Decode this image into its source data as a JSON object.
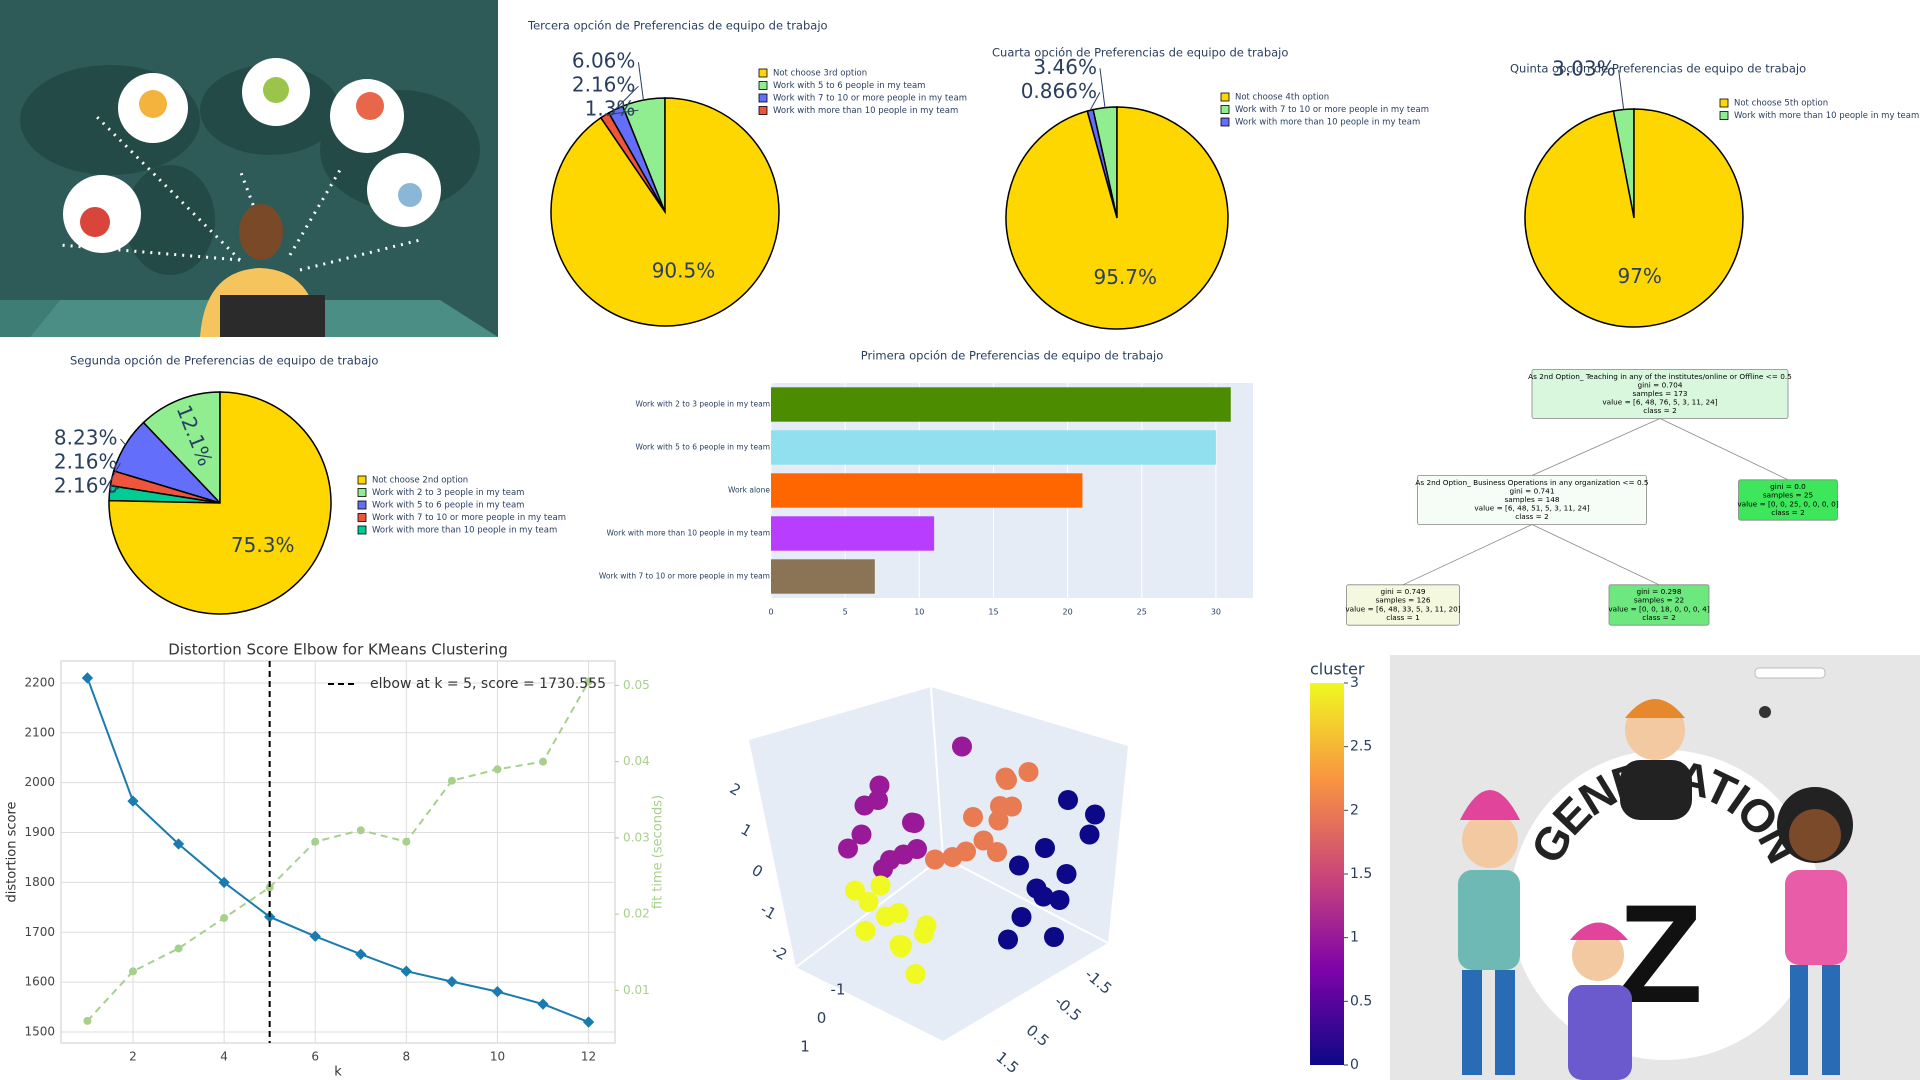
{
  "chart_data": [
    {
      "type": "pie",
      "title": "Tercera opción de Preferencias de equipo de trabajo",
      "labels": [
        "Not choose 3rd option",
        "Work with 5 to 6 people in my team",
        "Work with 7 to 10 or more people in my team",
        "Work with more than 10 people in my team"
      ],
      "values": [
        90.5,
        6.06,
        2.16,
        1.3
      ],
      "value_labels": [
        "90.5%",
        "6.06%",
        "2.16%",
        "1.3%"
      ],
      "colors": [
        "#FFD700",
        "#90EE90",
        "#636EFA",
        "#EF553B"
      ]
    },
    {
      "type": "pie",
      "title": "Cuarta opción de Preferencias de equipo de trabajo",
      "labels": [
        "Not choose 4th option",
        "Work with 7 to 10 or more people in my team",
        "Work with more than 10 people in my team"
      ],
      "values": [
        95.7,
        3.46,
        0.866
      ],
      "value_labels": [
        "95.7%",
        "3.46%",
        "0.866%"
      ],
      "colors": [
        "#FFD700",
        "#90EE90",
        "#636EFA"
      ]
    },
    {
      "type": "pie",
      "title": "Quinta opción de Preferencias de equipo de trabajo",
      "labels": [
        "Not choose 5th option",
        "Work with more than 10 people in my team"
      ],
      "values": [
        97,
        3.03
      ],
      "value_labels": [
        "97%",
        "3.03%"
      ],
      "colors": [
        "#FFD700",
        "#90EE90"
      ]
    },
    {
      "type": "pie",
      "title": "Segunda opción de Preferencias de equipo de trabajo",
      "labels": [
        "Not choose 2nd option",
        "Work with 2 to 3 people in my team",
        "Work with 5 to 6 people in my team",
        "Work with 7 to 10 or more people in my team",
        "Work with more than 10 people in my team"
      ],
      "values": [
        75.3,
        12.1,
        8.23,
        2.16,
        2.16
      ],
      "value_labels": [
        "75.3%",
        "12.1%",
        "8.23%",
        "2.16%",
        "2.16%"
      ],
      "colors": [
        "#FFD700",
        "#90EE90",
        "#636EFA",
        "#EF553B",
        "#00CC96"
      ]
    },
    {
      "type": "bar",
      "orientation": "h",
      "title": "Primera opción de Preferencias de equipo de trabajo",
      "categories": [
        "Work with 2 to 3 people in my team",
        "Work with 5 to 6 people in my team",
        "Work alone",
        "Work with more than 10 people in my team",
        "Work with 7 to 10 or more people in my team"
      ],
      "values": [
        31,
        30,
        21,
        11,
        7
      ],
      "colors": [
        "#4C8C00",
        "#90E0EF",
        "#FF6600",
        "#B83DFF",
        "#8B7355"
      ],
      "xlim": [
        0,
        32.5
      ],
      "xticks": [
        0,
        5,
        10,
        15,
        20,
        25,
        30
      ],
      "grid": true
    },
    {
      "type": "line",
      "title": "Distortion Score Elbow for KMeans Clustering",
      "xlabel": "k",
      "ylabel": "distortion score",
      "y2label": "fit time (seconds)",
      "x": [
        1,
        2,
        3,
        4,
        5,
        6,
        7,
        8,
        9,
        10,
        11,
        12
      ],
      "series": [
        {
          "color": "#1A7BB0",
          "values": [
            2210,
            1963,
            1877,
            1800,
            1731,
            1692,
            1656,
            1622,
            1601,
            1581,
            1556,
            1520
          ]
        },
        {
          "color": "#A8D08D",
          "axis": "y2",
          "values": [
            0.006,
            0.0125,
            0.0155,
            0.0195,
            0.0235,
            0.0295,
            0.031,
            0.0295,
            0.0375,
            0.039,
            0.04,
            0.0505
          ]
        }
      ],
      "xlim": [
        0.42,
        12.58
      ],
      "xticks": [
        2,
        4,
        6,
        8,
        10,
        12
      ],
      "ylim": [
        1478,
        2244
      ],
      "yticks": [
        1500,
        1600,
        1700,
        1800,
        1900,
        2000,
        2100,
        2200
      ],
      "y2lim": [
        0.0031,
        0.0532
      ],
      "y2ticks": [
        0.01,
        0.02,
        0.03,
        0.04,
        0.05
      ],
      "grid": true,
      "elbow_k": 5,
      "legend": "elbow at k = 5, score = 1730.555",
      "legend_corner": "upper right"
    },
    {
      "type": "scatter3d",
      "colorbar_title": "cluster",
      "clim": [
        0,
        3
      ],
      "colorbar_ticks": [
        0,
        0.5,
        1,
        1.5,
        2,
        2.5,
        3
      ],
      "colorscale": [
        "#0D0887",
        "#7E03A8",
        "#CC4778",
        "#F89540",
        "#F0F921"
      ],
      "xticks": [
        -1.5,
        -0.5,
        0.5,
        1.5
      ],
      "yticks": [
        1,
        0,
        -1
      ],
      "zticks": [
        2,
        1,
        0,
        -1,
        -2
      ],
      "x": [
        -0.9,
        -0.7,
        -0.5,
        -0.3,
        -0.6,
        -0.8,
        -0.4,
        -0.2,
        -0.6,
        -0.5,
        -0.7,
        -0.3,
        -0.9,
        -0.7,
        -0.5,
        -0.3,
        -0.8,
        -0.6,
        -0.4,
        -1.0,
        -0.2,
        -0.6,
        0.2,
        -0.5,
        0.2,
        0.4,
        0.6,
        0.8,
        0.3,
        0.5,
        0.7,
        0.1,
        0.4,
        0.9,
        0.6,
        0.0,
        0.9,
        1.1,
        1.3,
        0.7,
        1.0,
        1.2,
        1.5,
        0.8,
        1.4,
        0.6,
        1.1,
        1.6
      ],
      "y": [
        0.2,
        -0.2,
        0.1,
        0.3,
        0.4,
        -0.3,
        -0.1,
        0.0,
        0.0,
        0.5,
        0.1,
        -0.4,
        0.1,
        -0.3,
        0.2,
        0.0,
        0.4,
        -0.2,
        0.3,
        0.0,
        -0.3,
        0.1,
        0.0,
        -0.4,
        0.1,
        -0.2,
        0.0,
        -0.3,
        0.3,
        0.2,
        -0.1,
        0.0,
        0.4,
        0.0,
        0.3,
        -0.2,
        0.2,
        -0.1,
        0.0,
        0.3,
        0.4,
        -0.3,
        0.1,
        0.0,
        -0.2,
        0.2,
        0.3,
        0.0
      ],
      "z": [
        -0.8,
        -0.6,
        -1.0,
        -0.7,
        -0.9,
        -0.5,
        -1.1,
        -0.9,
        -0.7,
        -1.2,
        -0.3,
        -0.8,
        0.3,
        0.5,
        0.1,
        0.4,
        0.0,
        0.6,
        0.2,
        0.1,
        0.3,
        0.0,
        1.3,
        0.7,
        0.1,
        0.4,
        0.6,
        0.8,
        0.3,
        0.5,
        0.9,
        0.0,
        0.2,
        1.0,
        0.7,
        -0.1,
        -0.3,
        -0.5,
        -0.2,
        -0.6,
        -0.8,
        0.0,
        0.3,
        -0.1,
        0.6,
        -0.9,
        -0.4,
        0.5
      ],
      "cluster": [
        3,
        3,
        3,
        3,
        3,
        3,
        3,
        3,
        3,
        3,
        3,
        3,
        1,
        1,
        1,
        1,
        1,
        1,
        1,
        1,
        1,
        1,
        1,
        1,
        2,
        2,
        2,
        2,
        2,
        2,
        2,
        2,
        2,
        2,
        2,
        2,
        0,
        0,
        0,
        0,
        0,
        0,
        0,
        0,
        0,
        0,
        0,
        0
      ]
    }
  ],
  "tree": {
    "nodes": [
      {
        "lines": [
          "As 2nd Option_ Teaching in any of the institutes/online or Offline <= 0.5",
          "gini = 0.704",
          "samples = 173",
          "value = [6, 48, 76, 5, 3, 11, 24]",
          "class = 2"
        ],
        "color": "#D9F7DD"
      },
      {
        "lines": [
          "As 2nd Option_ Business Operations in any organization <= 0.5",
          "gini = 0.741",
          "samples = 148",
          "value = [6, 48, 51, 5, 3, 11, 24]",
          "class = 2"
        ],
        "color": "#F6FDF7"
      },
      {
        "lines": [
          "gini = 0.0",
          "samples = 25",
          "value = [0, 0, 25, 0, 0, 0, 0]",
          "class = 2"
        ],
        "color": "#3DE65A"
      },
      {
        "lines": [
          "gini = 0.749",
          "samples = 126",
          "value = [6, 48, 33, 5, 3, 11, 20]",
          "class = 1"
        ],
        "color": "#F3F8DE"
      },
      {
        "lines": [
          "gini = 0.298",
          "samples = 22",
          "value = [0, 0, 18, 0, 0, 0, 4]",
          "class = 2"
        ],
        "color": "#6CE87F"
      }
    ],
    "edges": [
      [
        0,
        1
      ],
      [
        0,
        2
      ],
      [
        1,
        3
      ],
      [
        1,
        4
      ]
    ]
  },
  "illustration": {
    "word": "GENERATION",
    "letter": "Z"
  }
}
